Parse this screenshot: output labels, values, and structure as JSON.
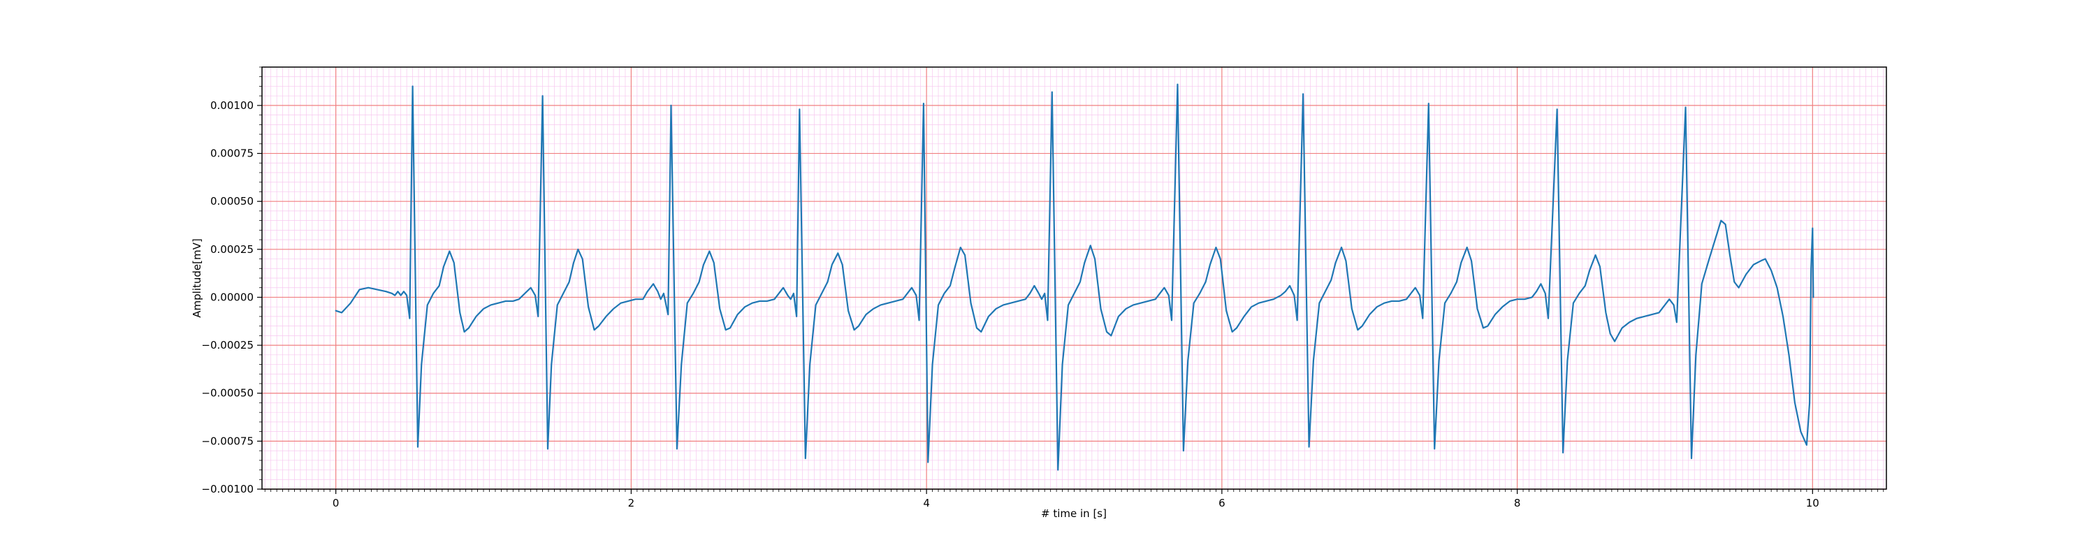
{
  "chart_data": {
    "type": "line",
    "title": "",
    "xlabel": "# time in [s]",
    "ylabel": "Amplitude[mV]",
    "xlim": [
      -0.5,
      10.5
    ],
    "ylim": [
      -0.001,
      0.0012
    ],
    "x_ticks": [
      0,
      2,
      4,
      6,
      8,
      10
    ],
    "x_tick_labels": [
      "0",
      "2",
      "4",
      "6",
      "8",
      "10"
    ],
    "y_ticks": [
      -0.001,
      -0.00075,
      -0.0005,
      -0.00025,
      0.0,
      0.00025,
      0.0005,
      0.00075,
      0.001
    ],
    "y_tick_labels": [
      "−0.00100",
      "−0.00075",
      "−0.00050",
      "−0.00025",
      "0.00000",
      "0.00025",
      "0.00050",
      "0.00075",
      "0.00100"
    ],
    "grid": {
      "major": true,
      "minor": true,
      "x_major_step": 2,
      "x_minor_step": 0.04,
      "y_major_step": 0.00025,
      "y_minor_step": 5e-05,
      "major_color": "#f08080",
      "minor_color": "#f7c8ef"
    },
    "series": [
      {
        "color": "#1f77b4",
        "points": [
          [
            0.0,
            -7e-05
          ],
          [
            0.04,
            -8e-05
          ],
          [
            0.1,
            -3e-05
          ],
          [
            0.16,
            4e-05
          ],
          [
            0.22,
            5e-05
          ],
          [
            0.28,
            4e-05
          ],
          [
            0.34,
            3e-05
          ],
          [
            0.38,
            2e-05
          ],
          [
            0.4,
            1e-05
          ],
          [
            0.42,
            3e-05
          ],
          [
            0.44,
            1e-05
          ],
          [
            0.46,
            3e-05
          ],
          [
            0.48,
            1e-05
          ],
          [
            0.5,
            -0.00011
          ],
          [
            0.52,
            0.0011
          ],
          [
            0.555,
            -0.00078
          ],
          [
            0.58,
            -0.00035
          ],
          [
            0.62,
            -4e-05
          ],
          [
            0.66,
            2e-05
          ],
          [
            0.7,
            6e-05
          ],
          [
            0.73,
            0.00016
          ],
          [
            0.77,
            0.00024
          ],
          [
            0.8,
            0.00018
          ],
          [
            0.84,
            -8e-05
          ],
          [
            0.87,
            -0.00018
          ],
          [
            0.9,
            -0.00016
          ],
          [
            0.95,
            -0.0001
          ],
          [
            1.0,
            -6e-05
          ],
          [
            1.05,
            -4e-05
          ],
          [
            1.1,
            -3e-05
          ],
          [
            1.15,
            -2e-05
          ],
          [
            1.2,
            -2e-05
          ],
          [
            1.24,
            -1e-05
          ],
          [
            1.28,
            2e-05
          ],
          [
            1.32,
            5e-05
          ],
          [
            1.35,
            1e-05
          ],
          [
            1.37,
            -0.0001
          ],
          [
            1.4,
            0.00105
          ],
          [
            1.435,
            -0.00079
          ],
          [
            1.46,
            -0.00035
          ],
          [
            1.5,
            -4e-05
          ],
          [
            1.54,
            2e-05
          ],
          [
            1.58,
            8e-05
          ],
          [
            1.61,
            0.00018
          ],
          [
            1.64,
            0.00025
          ],
          [
            1.67,
            0.0002
          ],
          [
            1.71,
            -5e-05
          ],
          [
            1.75,
            -0.00017
          ],
          [
            1.78,
            -0.00015
          ],
          [
            1.83,
            -0.0001
          ],
          [
            1.88,
            -6e-05
          ],
          [
            1.93,
            -3e-05
          ],
          [
            1.98,
            -2e-05
          ],
          [
            2.03,
            -1e-05
          ],
          [
            2.08,
            -1e-05
          ],
          [
            2.11,
            3e-05
          ],
          [
            2.15,
            7e-05
          ],
          [
            2.18,
            3e-05
          ],
          [
            2.2,
            -1e-05
          ],
          [
            2.22,
            2e-05
          ],
          [
            2.25,
            -9e-05
          ],
          [
            2.27,
            0.001
          ],
          [
            2.31,
            -0.00079
          ],
          [
            2.34,
            -0.00035
          ],
          [
            2.38,
            -3e-05
          ],
          [
            2.42,
            2e-05
          ],
          [
            2.46,
            8e-05
          ],
          [
            2.49,
            0.00017
          ],
          [
            2.53,
            0.00024
          ],
          [
            2.56,
            0.00018
          ],
          [
            2.6,
            -6e-05
          ],
          [
            2.64,
            -0.00017
          ],
          [
            2.67,
            -0.00016
          ],
          [
            2.72,
            -9e-05
          ],
          [
            2.77,
            -5e-05
          ],
          [
            2.82,
            -3e-05
          ],
          [
            2.87,
            -2e-05
          ],
          [
            2.92,
            -2e-05
          ],
          [
            2.97,
            -1e-05
          ],
          [
            3.0,
            2e-05
          ],
          [
            3.03,
            5e-05
          ],
          [
            3.06,
            1e-05
          ],
          [
            3.08,
            -1e-05
          ],
          [
            3.1,
            2e-05
          ],
          [
            3.12,
            -0.0001
          ],
          [
            3.14,
            0.00098
          ],
          [
            3.18,
            -0.00084
          ],
          [
            3.21,
            -0.00035
          ],
          [
            3.25,
            -4e-05
          ],
          [
            3.29,
            2e-05
          ],
          [
            3.33,
            8e-05
          ],
          [
            3.36,
            0.00017
          ],
          [
            3.4,
            0.00023
          ],
          [
            3.43,
            0.00017
          ],
          [
            3.47,
            -7e-05
          ],
          [
            3.51,
            -0.00017
          ],
          [
            3.54,
            -0.00015
          ],
          [
            3.59,
            -9e-05
          ],
          [
            3.64,
            -6e-05
          ],
          [
            3.69,
            -4e-05
          ],
          [
            3.74,
            -3e-05
          ],
          [
            3.79,
            -2e-05
          ],
          [
            3.84,
            -1e-05
          ],
          [
            3.87,
            2e-05
          ],
          [
            3.9,
            5e-05
          ],
          [
            3.93,
            1e-05
          ],
          [
            3.95,
            -0.00012
          ],
          [
            3.98,
            0.00101
          ],
          [
            4.01,
            -0.00086
          ],
          [
            4.04,
            -0.00035
          ],
          [
            4.08,
            -4e-05
          ],
          [
            4.12,
            2e-05
          ],
          [
            4.16,
            6e-05
          ],
          [
            4.19,
            0.00015
          ],
          [
            4.23,
            0.00026
          ],
          [
            4.26,
            0.00022
          ],
          [
            4.3,
            -3e-05
          ],
          [
            4.34,
            -0.00016
          ],
          [
            4.37,
            -0.00018
          ],
          [
            4.42,
            -0.0001
          ],
          [
            4.47,
            -6e-05
          ],
          [
            4.52,
            -4e-05
          ],
          [
            4.57,
            -3e-05
          ],
          [
            4.62,
            -2e-05
          ],
          [
            4.67,
            -1e-05
          ],
          [
            4.7,
            2e-05
          ],
          [
            4.73,
            6e-05
          ],
          [
            4.76,
            2e-05
          ],
          [
            4.78,
            -1e-05
          ],
          [
            4.8,
            2e-05
          ],
          [
            4.82,
            -0.00012
          ],
          [
            4.85,
            0.00107
          ],
          [
            4.89,
            -0.0009
          ],
          [
            4.92,
            -0.00035
          ],
          [
            4.96,
            -4e-05
          ],
          [
            5.0,
            2e-05
          ],
          [
            5.04,
            8e-05
          ],
          [
            5.07,
            0.00018
          ],
          [
            5.11,
            0.00027
          ],
          [
            5.14,
            0.0002
          ],
          [
            5.18,
            -6e-05
          ],
          [
            5.22,
            -0.00018
          ],
          [
            5.25,
            -0.0002
          ],
          [
            5.3,
            -0.0001
          ],
          [
            5.35,
            -6e-05
          ],
          [
            5.4,
            -4e-05
          ],
          [
            5.45,
            -3e-05
          ],
          [
            5.5,
            -2e-05
          ],
          [
            5.55,
            -1e-05
          ],
          [
            5.58,
            2e-05
          ],
          [
            5.61,
            5e-05
          ],
          [
            5.64,
            1e-05
          ],
          [
            5.66,
            -0.00012
          ],
          [
            5.7,
            0.00111
          ],
          [
            5.74,
            -0.0008
          ],
          [
            5.77,
            -0.00033
          ],
          [
            5.81,
            -3e-05
          ],
          [
            5.85,
            2e-05
          ],
          [
            5.89,
            8e-05
          ],
          [
            5.92,
            0.00017
          ],
          [
            5.96,
            0.00026
          ],
          [
            5.99,
            0.0002
          ],
          [
            6.03,
            -7e-05
          ],
          [
            6.07,
            -0.00018
          ],
          [
            6.1,
            -0.00016
          ],
          [
            6.15,
            -0.0001
          ],
          [
            6.2,
            -5e-05
          ],
          [
            6.25,
            -3e-05
          ],
          [
            6.3,
            -2e-05
          ],
          [
            6.35,
            -1e-05
          ],
          [
            6.4,
            1e-05
          ],
          [
            6.43,
            3e-05
          ],
          [
            6.46,
            6e-05
          ],
          [
            6.49,
            1e-05
          ],
          [
            6.51,
            -0.00012
          ],
          [
            6.55,
            0.00106
          ],
          [
            6.59,
            -0.00078
          ],
          [
            6.62,
            -0.00033
          ],
          [
            6.66,
            -3e-05
          ],
          [
            6.7,
            3e-05
          ],
          [
            6.74,
            9e-05
          ],
          [
            6.77,
            0.00018
          ],
          [
            6.81,
            0.00026
          ],
          [
            6.84,
            0.00019
          ],
          [
            6.88,
            -6e-05
          ],
          [
            6.92,
            -0.00017
          ],
          [
            6.95,
            -0.00015
          ],
          [
            7.0,
            -9e-05
          ],
          [
            7.05,
            -5e-05
          ],
          [
            7.1,
            -3e-05
          ],
          [
            7.15,
            -2e-05
          ],
          [
            7.2,
            -2e-05
          ],
          [
            7.25,
            -1e-05
          ],
          [
            7.28,
            2e-05
          ],
          [
            7.31,
            5e-05
          ],
          [
            7.34,
            1e-05
          ],
          [
            7.36,
            -0.00011
          ],
          [
            7.4,
            0.00101
          ],
          [
            7.44,
            -0.00079
          ],
          [
            7.47,
            -0.00033
          ],
          [
            7.51,
            -3e-05
          ],
          [
            7.55,
            2e-05
          ],
          [
            7.59,
            8e-05
          ],
          [
            7.62,
            0.00018
          ],
          [
            7.66,
            0.00026
          ],
          [
            7.69,
            0.00019
          ],
          [
            7.73,
            -6e-05
          ],
          [
            7.77,
            -0.00016
          ],
          [
            7.8,
            -0.00015
          ],
          [
            7.85,
            -9e-05
          ],
          [
            7.9,
            -5e-05
          ],
          [
            7.95,
            -2e-05
          ],
          [
            8.0,
            -1e-05
          ],
          [
            8.05,
            -1e-05
          ],
          [
            8.1,
            0.0
          ],
          [
            8.13,
            3e-05
          ],
          [
            8.16,
            7e-05
          ],
          [
            8.19,
            2e-05
          ],
          [
            8.21,
            -0.00011
          ],
          [
            8.27,
            0.00098
          ],
          [
            8.31,
            -0.00081
          ],
          [
            8.34,
            -0.00033
          ],
          [
            8.38,
            -3e-05
          ],
          [
            8.42,
            2e-05
          ],
          [
            8.46,
            6e-05
          ],
          [
            8.49,
            0.00014
          ],
          [
            8.53,
            0.00022
          ],
          [
            8.56,
            0.00016
          ],
          [
            8.6,
            -8e-05
          ],
          [
            8.63,
            -0.00019
          ],
          [
            8.66,
            -0.00023
          ],
          [
            8.71,
            -0.00016
          ],
          [
            8.76,
            -0.00013
          ],
          [
            8.81,
            -0.00011
          ],
          [
            8.86,
            -0.0001
          ],
          [
            8.91,
            -9e-05
          ],
          [
            8.96,
            -8e-05
          ],
          [
            9.0,
            -4e-05
          ],
          [
            9.03,
            -1e-05
          ],
          [
            9.06,
            -4e-05
          ],
          [
            9.08,
            -0.00013
          ],
          [
            9.14,
            0.00099
          ],
          [
            9.18,
            -0.00084
          ],
          [
            9.21,
            -0.0003
          ],
          [
            9.25,
            7e-05
          ],
          [
            9.3,
            0.0002
          ],
          [
            9.34,
            0.0003
          ],
          [
            9.38,
            0.0004
          ],
          [
            9.41,
            0.00038
          ],
          [
            9.44,
            0.00022
          ],
          [
            9.47,
            8e-05
          ],
          [
            9.5,
            5e-05
          ],
          [
            9.55,
            0.00012
          ],
          [
            9.6,
            0.00017
          ],
          [
            9.65,
            0.00019
          ],
          [
            9.68,
            0.0002
          ],
          [
            9.72,
            0.00014
          ],
          [
            9.76,
            5e-05
          ],
          [
            9.8,
            -0.0001
          ],
          [
            9.84,
            -0.0003
          ],
          [
            9.88,
            -0.00055
          ],
          [
            9.92,
            -0.0007
          ],
          [
            9.96,
            -0.00077
          ],
          [
            9.98,
            -0.00055
          ],
          [
            9.99,
            0.00015
          ],
          [
            10.0,
            0.00036
          ],
          [
            10.005,
            0.0
          ]
        ]
      }
    ]
  }
}
